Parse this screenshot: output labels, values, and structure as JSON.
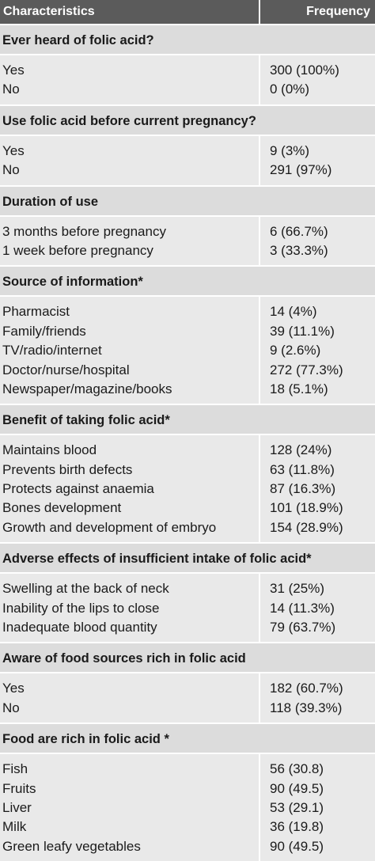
{
  "header": {
    "characteristics": "Characteristics",
    "frequency": "Frequency"
  },
  "sections": [
    {
      "title": "Ever heard of folic acid?",
      "rows": [
        [
          "Yes",
          "300 (100%)"
        ],
        [
          "No",
          "0 (0%)"
        ]
      ]
    },
    {
      "title": "Use folic acid before current pregnancy?",
      "rows": [
        [
          "Yes",
          "9 (3%)"
        ],
        [
          "No",
          "291 (97%)"
        ]
      ]
    },
    {
      "title": "Duration of use",
      "rows": [
        [
          "3 months before pregnancy",
          "6 (66.7%)"
        ],
        [
          "1 week before pregnancy",
          "3 (33.3%)"
        ]
      ]
    },
    {
      "title": "Source of information*",
      "rows": [
        [
          "Pharmacist",
          "14 (4%)"
        ],
        [
          "Family/friends",
          "39 (11.1%)"
        ],
        [
          "TV/radio/internet",
          "9 (2.6%)"
        ],
        [
          "Doctor/nurse/hospital",
          "272 (77.3%)"
        ],
        [
          "Newspaper/magazine/books",
          "18 (5.1%)"
        ]
      ]
    },
    {
      "title": "Benefit of taking folic acid*",
      "rows": [
        [
          "Maintains blood",
          "128 (24%)"
        ],
        [
          "Prevents birth defects",
          "63 (11.8%)"
        ],
        [
          "Protects against anaemia",
          "87 (16.3%)"
        ],
        [
          "Bones development",
          "101 (18.9%)"
        ],
        [
          "Growth and development of embryo",
          "154 (28.9%)"
        ]
      ]
    },
    {
      "title": "Adverse effects of insufficient intake of folic acid*",
      "rows": [
        [
          "Swelling at the back of neck",
          "31 (25%)"
        ],
        [
          "Inability of the lips to close",
          "14 (11.3%)"
        ],
        [
          "Inadequate blood quantity",
          "79 (63.7%)"
        ]
      ]
    },
    {
      "title": "Aware of food sources rich in folic acid",
      "rows": [
        [
          "Yes",
          "182 (60.7%)"
        ],
        [
          "No",
          "118 (39.3%)"
        ]
      ]
    },
    {
      "title": "Food are rich in folic acid *",
      "rows": [
        [
          "Fish",
          "56 (30.8)"
        ],
        [
          "Fruits",
          "90 (49.5)"
        ],
        [
          "Liver",
          "53 (29.1)"
        ],
        [
          "Milk",
          "36 (19.8)"
        ],
        [
          "Green leafy vegetables",
          "90 (49.5)"
        ]
      ]
    }
  ]
}
